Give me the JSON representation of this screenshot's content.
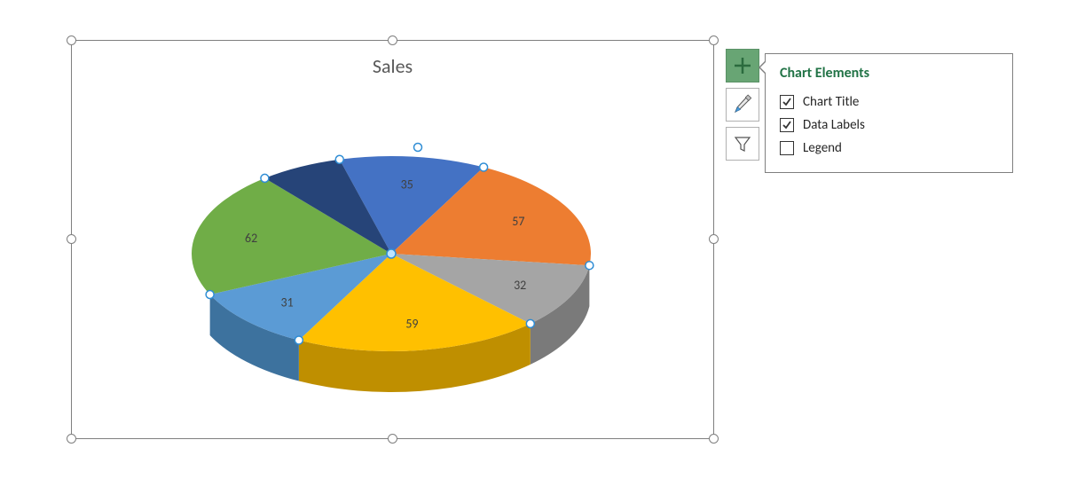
{
  "chart": {
    "title": "Sales",
    "type": "pie-3d",
    "title_fontsize": 22,
    "title_color": "#595959",
    "background_color": "#ffffff",
    "selection_border_color": "#7f7f7f",
    "selection_handle_fill": "#ffffff",
    "plot_handle_stroke": "#2f8dd5",
    "plot_handle_fill_center": "#bde4ff",
    "slices": [
      {
        "value": 35,
        "color": "#4472c4",
        "dark": "#335899"
      },
      {
        "value": 57,
        "color": "#ed7d31",
        "dark": "#b05a1e"
      },
      {
        "value": 32,
        "color": "#a5a5a5",
        "dark": "#7a7a7a"
      },
      {
        "value": 59,
        "color": "#ffc000",
        "dark": "#bf8f00"
      },
      {
        "value": 31,
        "color": "#5b9bd5",
        "dark": "#3d729e"
      },
      {
        "value": 62,
        "color": "#70ad47",
        "dark": "#4f7a32"
      },
      {
        "value": null,
        "color": "#264478",
        "dark": "#1a2e52",
        "label_hidden": true
      }
    ],
    "label_fontsize": 14,
    "label_color": "#404040"
  },
  "side_buttons": {
    "elements_active": true,
    "plus_icon": "chart-elements",
    "brush_icon": "chart-styles",
    "funnel_icon": "chart-filters"
  },
  "popup": {
    "title": "Chart Elements",
    "items": [
      {
        "label": "Chart Title",
        "checked": true
      },
      {
        "label": "Data Labels",
        "checked": true
      },
      {
        "label": "Legend",
        "checked": false
      }
    ]
  }
}
